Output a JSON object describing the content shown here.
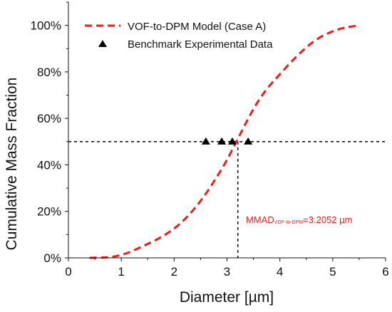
{
  "chart_data": {
    "type": "line",
    "xlabel": "Diameter [µm]",
    "ylabel": "Cumulative Mass Fraction",
    "xlim": [
      0,
      6
    ],
    "ylim": [
      0,
      1.1
    ],
    "x_ticks": [
      0,
      1,
      2,
      3,
      4,
      5,
      6
    ],
    "x_tick_labels": [
      "0",
      "1",
      "2",
      "3",
      "4",
      "5",
      "6"
    ],
    "y_ticks": [
      0,
      0.2,
      0.4,
      0.6,
      0.8,
      1.0
    ],
    "y_tick_labels": [
      "0%",
      "20%",
      "40%",
      "60%",
      "80%",
      "100%"
    ],
    "grid": false,
    "legend_position": "top-left",
    "colors": {
      "model": "#ee1c1c",
      "benchmark": "#000000",
      "reference": "#000000"
    },
    "series": [
      {
        "name": "VOF-to-DPM Model (Case A)",
        "style": "dashed-line",
        "x": [
          0.4,
          0.6,
          0.8,
          1.0,
          1.2,
          1.4,
          1.6,
          1.8,
          2.0,
          2.2,
          2.4,
          2.6,
          2.8,
          3.0,
          3.2,
          3.4,
          3.6,
          3.8,
          4.0,
          4.2,
          4.4,
          4.6,
          4.8,
          5.0,
          5.2,
          5.5
        ],
        "y": [
          0.0,
          0.001,
          0.003,
          0.012,
          0.028,
          0.05,
          0.07,
          0.095,
          0.125,
          0.165,
          0.215,
          0.275,
          0.345,
          0.42,
          0.51,
          0.6,
          0.68,
          0.74,
          0.79,
          0.84,
          0.885,
          0.925,
          0.955,
          0.975,
          0.99,
          1.0
        ]
      },
      {
        "name": "Benchmark Experimental Data",
        "style": "triangle-markers",
        "x": [
          2.6,
          2.9,
          3.1,
          3.4
        ],
        "y": [
          0.5,
          0.5,
          0.5,
          0.5
        ]
      }
    ],
    "reference_lines": {
      "y_value": 0.5,
      "x_value": 3.2052
    },
    "annotation": {
      "main": "MMAD",
      "subscript": "VOF-to-DPM",
      "value": "=3.2052 µm"
    }
  }
}
